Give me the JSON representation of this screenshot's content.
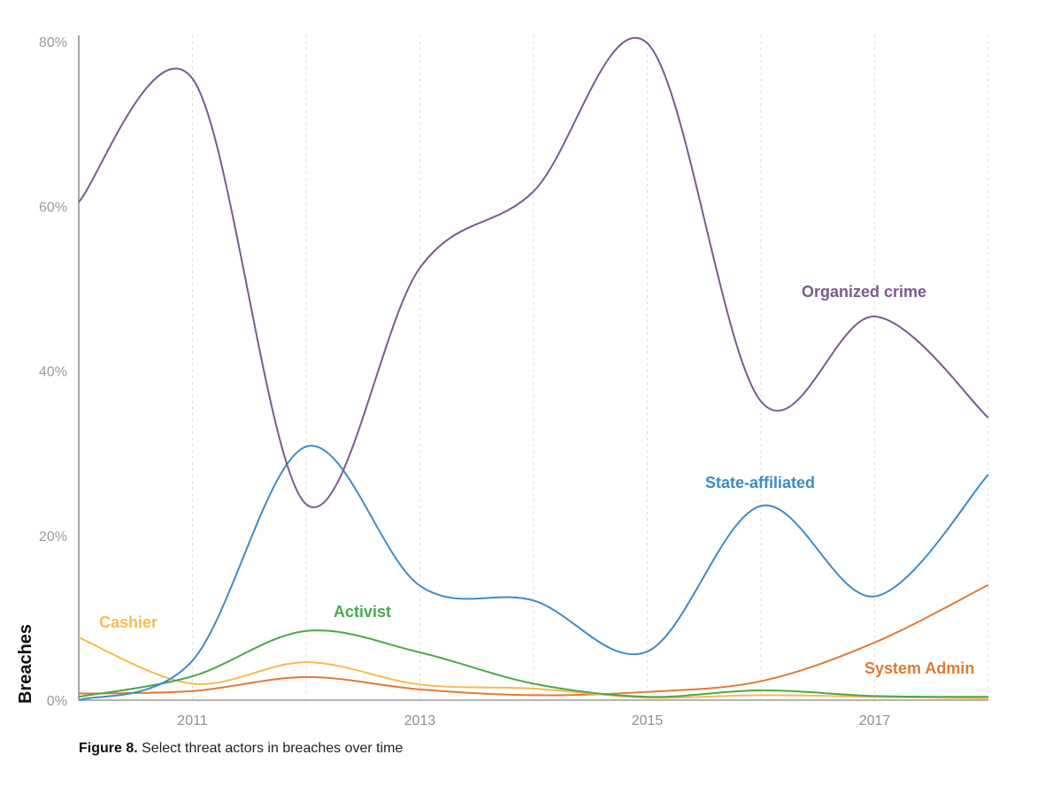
{
  "chart_data": {
    "type": "line",
    "title": "",
    "xlabel": "",
    "ylabel": "Breaches",
    "x": [
      2010,
      2011,
      2012,
      2013,
      2014,
      2015,
      2016,
      2017,
      2018
    ],
    "x_tick_labels": [
      "2011",
      "2013",
      "2015",
      "2017"
    ],
    "x_tick_values": [
      2011,
      2013,
      2015,
      2017
    ],
    "y_tick_labels": [
      "0%",
      "20%",
      "40%",
      "60%",
      "80%"
    ],
    "y_tick_values": [
      0,
      20,
      40,
      60,
      80
    ],
    "ylim": [
      0,
      80
    ],
    "xlim": [
      2010,
      2018
    ],
    "grid": "vertical dotted at each year",
    "legend": "inline labels",
    "series": [
      {
        "name": "Organized crime",
        "color": "#7b5a8f",
        "values": [
          60.5,
          75.5,
          23.8,
          52.5,
          61.8,
          79.8,
          36.3,
          46.6,
          34.3
        ]
      },
      {
        "name": "State-affiliated",
        "color": "#3d8bc8",
        "values": [
          0.0,
          4.8,
          30.8,
          13.9,
          12.1,
          5.9,
          23.6,
          12.6,
          27.4
        ]
      },
      {
        "name": "Activist",
        "color": "#4aa84a",
        "values": [
          0.4,
          2.9,
          8.4,
          5.8,
          2.0,
          0.4,
          1.2,
          0.5,
          0.4
        ]
      },
      {
        "name": "Cashier",
        "color": "#f2bd4f",
        "values": [
          7.6,
          2.0,
          4.6,
          1.9,
          1.4,
          0.3,
          0.6,
          0.4,
          0.2
        ]
      },
      {
        "name": "System Admin",
        "color": "#e07a33",
        "values": [
          0.8,
          1.1,
          2.8,
          1.3,
          0.6,
          1.0,
          2.3,
          7.0,
          14.0
        ]
      }
    ],
    "annotations": [
      "Organized crime",
      "State-affiliated",
      "Activist",
      "Cashier",
      "System Admin"
    ]
  },
  "caption": {
    "label": "Figure 8.",
    "text": " Select threat actors in breaches over time"
  }
}
